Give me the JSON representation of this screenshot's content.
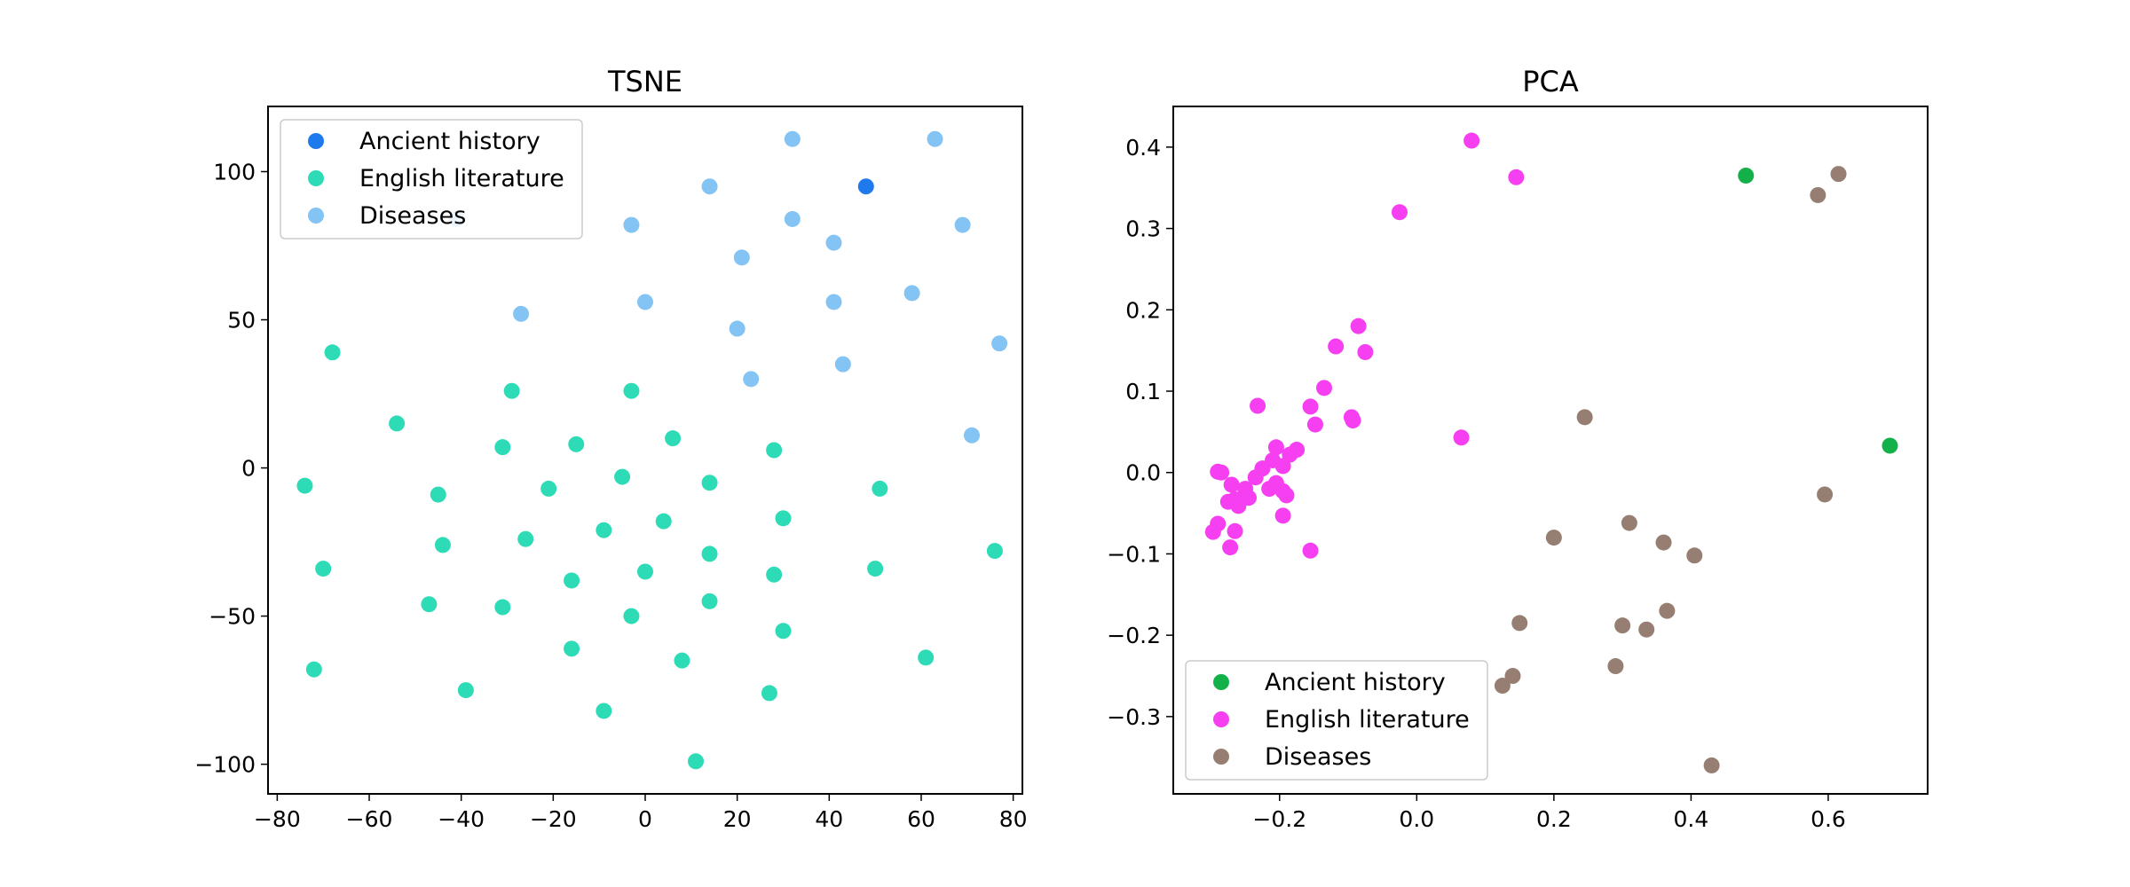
{
  "chart_data": [
    {
      "type": "scatter",
      "title": "TSNE",
      "xlabel": "",
      "ylabel": "",
      "xlim": [
        -82,
        82
      ],
      "ylim": [
        -110,
        122
      ],
      "xticks": [
        -80,
        -60,
        -40,
        -20,
        0,
        20,
        40,
        60,
        80
      ],
      "xtick_labels": [
        "−80",
        "−60",
        "−40",
        "−20",
        "0",
        "20",
        "40",
        "60",
        "80"
      ],
      "yticks": [
        -100,
        -50,
        0,
        50,
        100
      ],
      "ytick_labels": [
        "−100",
        "−50",
        "0",
        "50",
        "100"
      ],
      "grid": false,
      "legend_position": "top-left",
      "series": [
        {
          "name": "Ancient history",
          "color": "#1f7aee",
          "points": [
            [
              48,
              95
            ]
          ]
        },
        {
          "name": "English literature",
          "color": "#2ddcb6",
          "points": [
            [
              -68,
              39
            ],
            [
              -74,
              -6
            ],
            [
              -70,
              -34
            ],
            [
              -72,
              -68
            ],
            [
              -54,
              15
            ],
            [
              -45,
              -9
            ],
            [
              -44,
              -26
            ],
            [
              -47,
              -46
            ],
            [
              -39,
              -75
            ],
            [
              -29,
              26
            ],
            [
              -31,
              7
            ],
            [
              -26,
              -24
            ],
            [
              -31,
              -47
            ],
            [
              -21,
              -7
            ],
            [
              -15,
              8
            ],
            [
              -16,
              -38
            ],
            [
              -16,
              -61
            ],
            [
              -9,
              -21
            ],
            [
              -9,
              -82
            ],
            [
              -5,
              -3
            ],
            [
              -3,
              26
            ],
            [
              -3,
              -50
            ],
            [
              0,
              -35
            ],
            [
              4,
              -18
            ],
            [
              6,
              10
            ],
            [
              8,
              -65
            ],
            [
              11,
              -99
            ],
            [
              14,
              -5
            ],
            [
              14,
              -29
            ],
            [
              14,
              -45
            ],
            [
              28,
              6
            ],
            [
              28,
              -36
            ],
            [
              27,
              -76
            ],
            [
              30,
              -17
            ],
            [
              30,
              -55
            ],
            [
              51,
              -7
            ],
            [
              50,
              -34
            ],
            [
              61,
              -64
            ],
            [
              76,
              -28
            ]
          ]
        },
        {
          "name": "Diseases",
          "color": "#84c4f4",
          "points": [
            [
              -41,
              84
            ],
            [
              -27,
              52
            ],
            [
              -3,
              82
            ],
            [
              0,
              56
            ],
            [
              14,
              95
            ],
            [
              20,
              47
            ],
            [
              21,
              71
            ],
            [
              23,
              30
            ],
            [
              32,
              111
            ],
            [
              32,
              84
            ],
            [
              41,
              56
            ],
            [
              41,
              76
            ],
            [
              43,
              35
            ],
            [
              58,
              59
            ],
            [
              63,
              111
            ],
            [
              69,
              82
            ],
            [
              71,
              11
            ],
            [
              77,
              42
            ]
          ]
        }
      ]
    },
    {
      "type": "scatter",
      "title": "PCA",
      "xlabel": "",
      "ylabel": "",
      "xlim": [
        -0.355,
        0.745
      ],
      "ylim": [
        -0.395,
        0.45
      ],
      "xticks": [
        -0.2,
        0.0,
        0.2,
        0.4,
        0.6
      ],
      "xtick_labels": [
        "−0.2",
        "0.0",
        "0.2",
        "0.4",
        "0.6"
      ],
      "yticks": [
        -0.3,
        -0.2,
        -0.1,
        0.0,
        0.1,
        0.2,
        0.3,
        0.4
      ],
      "ytick_labels": [
        "−0.3",
        "−0.2",
        "−0.1",
        "0.0",
        "0.1",
        "0.2",
        "0.3",
        "0.4"
      ],
      "grid": false,
      "legend_position": "bottom-left",
      "series": [
        {
          "name": "Ancient history",
          "color": "#14b14b",
          "points": [
            [
              0.48,
              0.365
            ],
            [
              0.69,
              0.033
            ]
          ]
        },
        {
          "name": "English literature",
          "color": "#f53ff0",
          "points": [
            [
              0.08,
              0.408
            ],
            [
              0.145,
              0.363
            ],
            [
              -0.025,
              0.32
            ],
            [
              -0.085,
              0.18
            ],
            [
              -0.075,
              0.148
            ],
            [
              -0.118,
              0.155
            ],
            [
              -0.135,
              0.104
            ],
            [
              -0.155,
              0.081
            ],
            [
              -0.148,
              0.059
            ],
            [
              -0.232,
              0.082
            ],
            [
              -0.095,
              0.068
            ],
            [
              -0.093,
              0.064
            ],
            [
              0.065,
              0.043
            ],
            [
              -0.205,
              0.031
            ],
            [
              -0.185,
              0.022
            ],
            [
              -0.175,
              0.028
            ],
            [
              -0.21,
              0.015
            ],
            [
              -0.195,
              0.008
            ],
            [
              -0.225,
              0.005
            ],
            [
              -0.29,
              0.001
            ],
            [
              -0.285,
              0.0
            ],
            [
              -0.235,
              -0.006
            ],
            [
              -0.205,
              -0.013
            ],
            [
              -0.27,
              -0.015
            ],
            [
              -0.25,
              -0.02
            ],
            [
              -0.215,
              -0.02
            ],
            [
              -0.195,
              -0.023
            ],
            [
              -0.19,
              -0.028
            ],
            [
              -0.245,
              -0.031
            ],
            [
              -0.265,
              -0.033
            ],
            [
              -0.275,
              -0.036
            ],
            [
              -0.26,
              -0.041
            ],
            [
              -0.195,
              -0.053
            ],
            [
              -0.29,
              -0.063
            ],
            [
              -0.297,
              -0.073
            ],
            [
              -0.265,
              -0.072
            ],
            [
              -0.272,
              -0.092
            ],
            [
              -0.155,
              -0.096
            ]
          ]
        },
        {
          "name": "Diseases",
          "color": "#967f72",
          "points": [
            [
              0.615,
              0.367
            ],
            [
              0.585,
              0.341
            ],
            [
              0.245,
              0.068
            ],
            [
              0.595,
              -0.027
            ],
            [
              0.31,
              -0.062
            ],
            [
              0.2,
              -0.08
            ],
            [
              0.36,
              -0.086
            ],
            [
              0.405,
              -0.102
            ],
            [
              0.15,
              -0.185
            ],
            [
              0.3,
              -0.188
            ],
            [
              0.335,
              -0.193
            ],
            [
              0.365,
              -0.17
            ],
            [
              0.29,
              -0.238
            ],
            [
              0.14,
              -0.25
            ],
            [
              0.125,
              -0.262
            ],
            [
              0.43,
              -0.36
            ]
          ]
        }
      ]
    }
  ]
}
